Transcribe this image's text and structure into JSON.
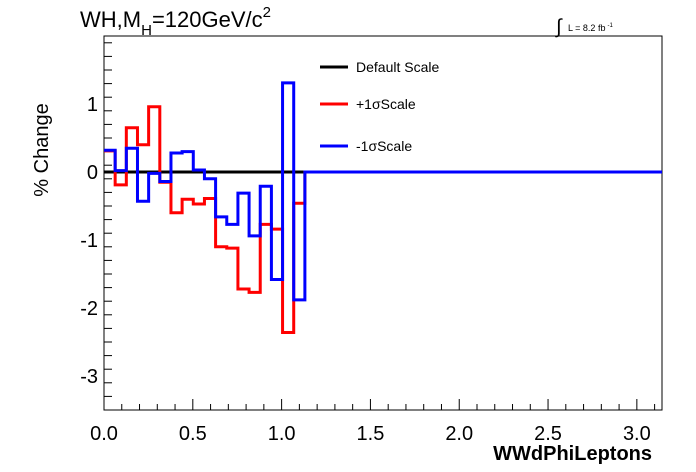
{
  "chart_data": {
    "type": "line",
    "title_main": "WH,M",
    "title_sub": "H",
    "title_rest": "=120GeV/c",
    "title_sup": "2",
    "lumi_prefix": "L = 8.2 fb",
    "lumi_sup": "-1",
    "xlabel": "WWdPhiLeptons",
    "ylabel": "% Change",
    "xlim": [
      0.0,
      3.1416
    ],
    "ylim": [
      -3.5,
      2.0
    ],
    "xticks": [
      0.0,
      0.5,
      1.0,
      1.5,
      2.0,
      2.5,
      3.0
    ],
    "xtick_labels": [
      "0.0",
      "0.5",
      "1.0",
      "1.5",
      "2.0",
      "2.5",
      "3.0"
    ],
    "yticks": [
      -3,
      -2,
      -1,
      0,
      1
    ],
    "ytick_labels": [
      "-3",
      "-2",
      "-1",
      "0",
      "1"
    ],
    "bin_edges": [
      0.0,
      0.0628,
      0.1257,
      0.1885,
      0.2513,
      0.3142,
      0.377,
      0.4398,
      0.5027,
      0.5655,
      0.6283,
      0.6912,
      0.754,
      0.8168,
      0.8796,
      0.9425,
      1.0053,
      1.0681,
      1.131,
      3.1416
    ],
    "series": [
      {
        "name": "Default Scale",
        "color": "#000000",
        "values": [
          0,
          0,
          0,
          0,
          0,
          0,
          0,
          0,
          0,
          0,
          0,
          0,
          0,
          0,
          0,
          0,
          0,
          0,
          0
        ]
      },
      {
        "name": "+1σScale",
        "color": "#ff0000",
        "values": [
          0.31,
          -0.19,
          0.65,
          0.4,
          0.96,
          -0.15,
          -0.6,
          -0.4,
          -0.47,
          -0.39,
          -1.1,
          -1.12,
          -1.72,
          -1.77,
          -0.77,
          -0.84,
          -2.36,
          -0.46,
          0.0
        ]
      },
      {
        "name": "-1σScale",
        "color": "#0000ff",
        "values": [
          0.32,
          0.02,
          0.35,
          -0.43,
          -0.02,
          -0.14,
          0.28,
          0.3,
          0.03,
          -0.1,
          -0.66,
          -0.77,
          -0.31,
          -0.94,
          -0.21,
          -1.58,
          1.31,
          -1.88,
          0.0
        ]
      }
    ],
    "legend_position": "top-right"
  }
}
